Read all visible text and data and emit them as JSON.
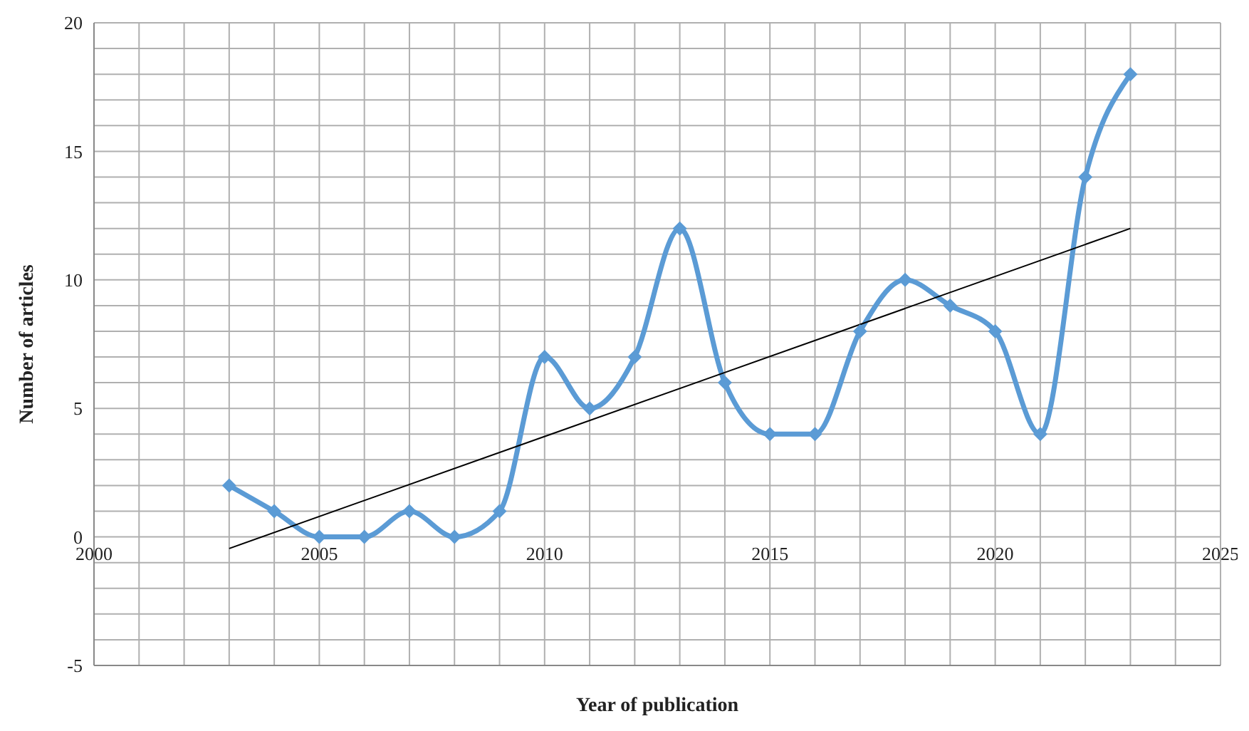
{
  "chart_data": {
    "type": "line",
    "xlabel": "Year of publication",
    "ylabel": "Number of articles",
    "x": [
      2003,
      2004,
      2005,
      2006,
      2007,
      2008,
      2009,
      2010,
      2011,
      2012,
      2013,
      2014,
      2015,
      2016,
      2017,
      2018,
      2019,
      2020,
      2021,
      2022,
      2023
    ],
    "series": [
      {
        "color": "#5b9bd5",
        "marker": "diamond",
        "values": [
          2,
          1,
          0,
          0,
          1,
          0,
          1,
          7,
          5,
          7,
          12,
          6,
          4,
          4,
          8,
          10,
          9,
          8,
          4,
          14,
          18
        ]
      },
      {
        "type": "line",
        "color": "#000000",
        "marker": "none",
        "x": [
          2003,
          2023
        ],
        "values": [
          -0.45,
          12
        ]
      }
    ],
    "xlim": [
      2000,
      2025
    ],
    "xticks": [
      2000,
      2005,
      2010,
      2015,
      2020,
      2025
    ],
    "ylim": [
      -5,
      20
    ],
    "yticks": [
      -5,
      0,
      5,
      10,
      15,
      20
    ],
    "grid": true,
    "legend": false
  }
}
